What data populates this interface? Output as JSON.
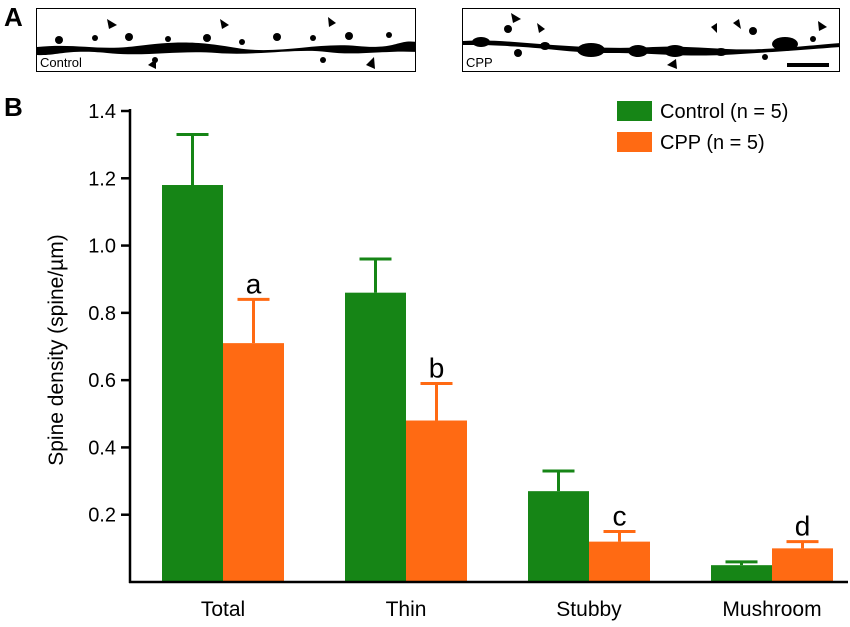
{
  "panels": {
    "a_letter": "A",
    "b_letter": "B"
  },
  "micrographs": {
    "left_label": "Control",
    "right_label": "CPP"
  },
  "colors": {
    "control": "#168516",
    "cpp": "#ff6a13",
    "significance": "#8a2be2"
  },
  "chart_data": {
    "type": "bar",
    "categories": [
      "Total",
      "Thin",
      "Stubby",
      "Mushroom"
    ],
    "ylabel": "Spine density (spine/µm)",
    "xlabel": "",
    "ylim": [
      0,
      1.4
    ],
    "yticks": [
      "0.2",
      "0.4",
      "0.6",
      "0.8",
      "1.0",
      "1.2",
      "1.4"
    ],
    "legend_position": "top-right",
    "series": [
      {
        "name": "Control (n = 5)",
        "values": [
          1.18,
          0.86,
          0.27,
          0.05
        ],
        "errors": [
          0.15,
          0.1,
          0.06,
          0.01
        ]
      },
      {
        "name": "CPP (n = 5)",
        "values": [
          0.71,
          0.48,
          0.12,
          0.1
        ],
        "errors": [
          0.13,
          0.11,
          0.03,
          0.02
        ]
      }
    ],
    "annotations": [
      "a",
      "b",
      "c",
      "d"
    ]
  }
}
